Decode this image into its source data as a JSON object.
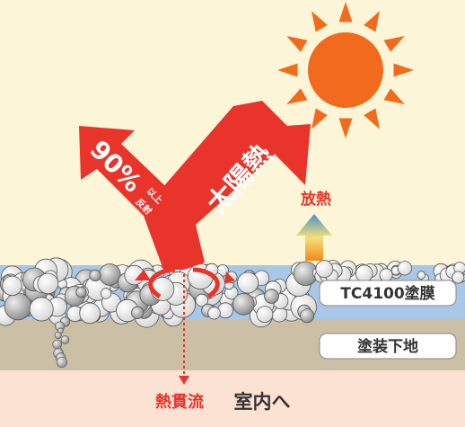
{
  "reflect": {
    "percent": "90%",
    "above": "以上",
    "reflect": "反射"
  },
  "solar_heat": "太陽熱",
  "heat_release": "放熱",
  "layers": {
    "coating": "TC4100塗膜",
    "base": "塗装下地"
  },
  "bottom": {
    "heat_flow": "熱貫流",
    "indoor": "室内へ"
  }
}
